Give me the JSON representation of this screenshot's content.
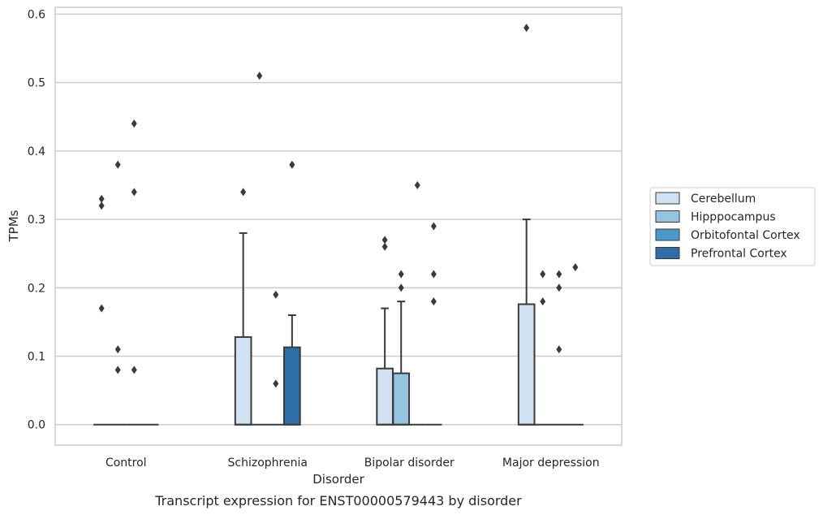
{
  "chart_data": {
    "type": "box",
    "caption": "Transcript expression for ENST00000579443 by disorder",
    "xlabel": "Disorder",
    "ylabel": "TPMs",
    "ylim": [
      -0.03,
      0.61
    ],
    "yticks": [
      0.0,
      0.1,
      0.2,
      0.3,
      0.4,
      0.5,
      0.6
    ],
    "grid": "horizontal",
    "legend_position": "right",
    "categories": [
      "Control",
      "Schizophrenia",
      "Bipolar disorder",
      "Major depression"
    ],
    "series": [
      {
        "name": "Cerebellum",
        "color": "#d0e1f2"
      },
      {
        "name": "Hipppocampus",
        "color": "#94c4df"
      },
      {
        "name": "Orbitofontal Cortex",
        "color": "#4a98c9"
      },
      {
        "name": "Prefrontal Cortex",
        "color": "#2e6ea8"
      }
    ],
    "boxes": [
      {
        "category": "Control",
        "series": "Cerebellum",
        "q1": 0,
        "median": 0,
        "q3": 0,
        "whisker_low": 0,
        "whisker_high": 0,
        "outliers": [
          0.33,
          0.32,
          0.17
        ]
      },
      {
        "category": "Control",
        "series": "Hipppocampus",
        "q1": 0,
        "median": 0,
        "q3": 0,
        "whisker_low": 0,
        "whisker_high": 0,
        "outliers": [
          0.38,
          0.11,
          0.08
        ]
      },
      {
        "category": "Control",
        "series": "Orbitofontal Cortex",
        "q1": 0,
        "median": 0,
        "q3": 0,
        "whisker_low": 0,
        "whisker_high": 0,
        "outliers": [
          0.44,
          0.34,
          0.08
        ]
      },
      {
        "category": "Control",
        "series": "Prefrontal Cortex",
        "q1": 0,
        "median": 0,
        "q3": 0,
        "whisker_low": 0,
        "whisker_high": 0,
        "outliers": []
      },
      {
        "category": "Schizophrenia",
        "series": "Cerebellum",
        "q1": 0,
        "median": 0,
        "q3": 0.128,
        "whisker_low": 0,
        "whisker_high": 0.28,
        "outliers": [
          0.34
        ]
      },
      {
        "category": "Schizophrenia",
        "series": "Hipppocampus",
        "q1": 0,
        "median": 0,
        "q3": 0,
        "whisker_low": 0,
        "whisker_high": 0,
        "outliers": [
          0.51
        ]
      },
      {
        "category": "Schizophrenia",
        "series": "Orbitofontal Cortex",
        "q1": 0,
        "median": 0,
        "q3": 0,
        "whisker_low": 0,
        "whisker_high": 0,
        "outliers": [
          0.19,
          0.06
        ]
      },
      {
        "category": "Schizophrenia",
        "series": "Prefrontal Cortex",
        "q1": 0,
        "median": 0,
        "q3": 0.113,
        "whisker_low": 0,
        "whisker_high": 0.16,
        "outliers": [
          0.38
        ]
      },
      {
        "category": "Bipolar disorder",
        "series": "Cerebellum",
        "q1": 0,
        "median": 0,
        "q3": 0.082,
        "whisker_low": 0,
        "whisker_high": 0.17,
        "outliers": [
          0.27,
          0.26
        ]
      },
      {
        "category": "Bipolar disorder",
        "series": "Hipppocampus",
        "q1": 0,
        "median": 0,
        "q3": 0.075,
        "whisker_low": 0,
        "whisker_high": 0.18,
        "outliers": [
          0.22,
          0.2
        ]
      },
      {
        "category": "Bipolar disorder",
        "series": "Orbitofontal Cortex",
        "q1": 0,
        "median": 0,
        "q3": 0,
        "whisker_low": 0,
        "whisker_high": 0,
        "outliers": [
          0.35
        ]
      },
      {
        "category": "Bipolar disorder",
        "series": "Prefrontal Cortex",
        "q1": 0,
        "median": 0,
        "q3": 0,
        "whisker_low": 0,
        "whisker_high": 0,
        "outliers": [
          0.29,
          0.22,
          0.18
        ]
      },
      {
        "category": "Major depression",
        "series": "Cerebellum",
        "q1": 0,
        "median": 0,
        "q3": 0.176,
        "whisker_low": 0,
        "whisker_high": 0.3,
        "outliers": [
          0.58
        ]
      },
      {
        "category": "Major depression",
        "series": "Hipppocampus",
        "q1": 0,
        "median": 0,
        "q3": 0,
        "whisker_low": 0,
        "whisker_high": 0,
        "outliers": [
          0.22,
          0.18
        ]
      },
      {
        "category": "Major depression",
        "series": "Orbitofontal Cortex",
        "q1": 0,
        "median": 0,
        "q3": 0,
        "whisker_low": 0,
        "whisker_high": 0,
        "outliers": [
          0.22,
          0.2,
          0.11
        ]
      },
      {
        "category": "Major depression",
        "series": "Prefrontal Cortex",
        "q1": 0,
        "median": 0,
        "q3": 0,
        "whisker_low": 0,
        "whisker_high": 0,
        "outliers": [
          0.23
        ]
      }
    ]
  }
}
